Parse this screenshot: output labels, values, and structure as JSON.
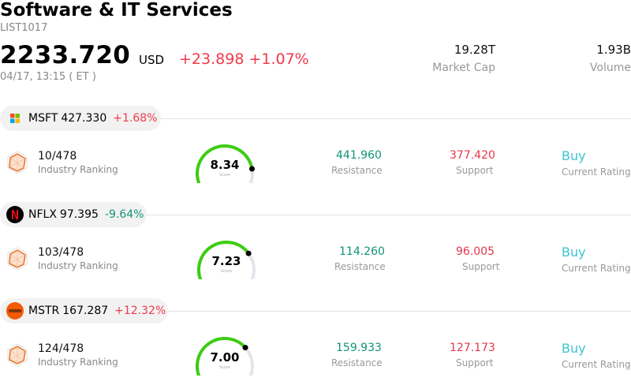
{
  "header": {
    "title": "Software & IT Services",
    "code": "LIST1017",
    "price": "2233.720",
    "currency": "USD",
    "change_abs": "+23.898",
    "change_pct": "+1.07%",
    "datetime": "04/17, 13:15  ( ET )",
    "market_cap_value": "19.28T",
    "market_cap_label": "Market Cap",
    "volume_value": "1.93B",
    "volume_label": "Volume"
  },
  "colors": {
    "up": "#ef3a4c",
    "down": "#12937a",
    "gauge": "#3ccd12",
    "rating": "#3cc3d0"
  },
  "stocks": [
    {
      "symbol": "MSFT",
      "price": "427.330",
      "change": "+1.68%",
      "logo_icon": "microsoft-logo-icon",
      "rank": "10/478",
      "rank_label": "Industry Ranking",
      "score": "8.34",
      "score_fraction": 0.834,
      "score_label": "Score",
      "resistance": "441.960",
      "resistance_label": "Resistance",
      "support": "377.420",
      "support_label": "Support",
      "rating": "Buy",
      "rating_label": "Current Rating"
    },
    {
      "symbol": "NFLX",
      "price": "97.395",
      "change": "-9.64%",
      "logo_icon": "netflix-logo-icon",
      "rank": "103/478",
      "rank_label": "Industry Ranking",
      "score": "7.23",
      "score_fraction": 0.723,
      "score_label": "Score",
      "resistance": "114.260",
      "resistance_label": "Resistance",
      "support": "96.005",
      "support_label": "Support",
      "rating": "Buy",
      "rating_label": "Current Rating"
    },
    {
      "symbol": "MSTR",
      "price": "167.287",
      "change": "+12.32%",
      "logo_icon": "strategy-logo-icon",
      "rank": "124/478",
      "rank_label": "Industry Ranking",
      "score": "7.00",
      "score_fraction": 0.7,
      "score_label": "Score",
      "resistance": "159.933",
      "resistance_label": "Resistance",
      "support": "127.173",
      "support_label": "Support",
      "rating": "Buy",
      "rating_label": "Current Rating"
    }
  ]
}
